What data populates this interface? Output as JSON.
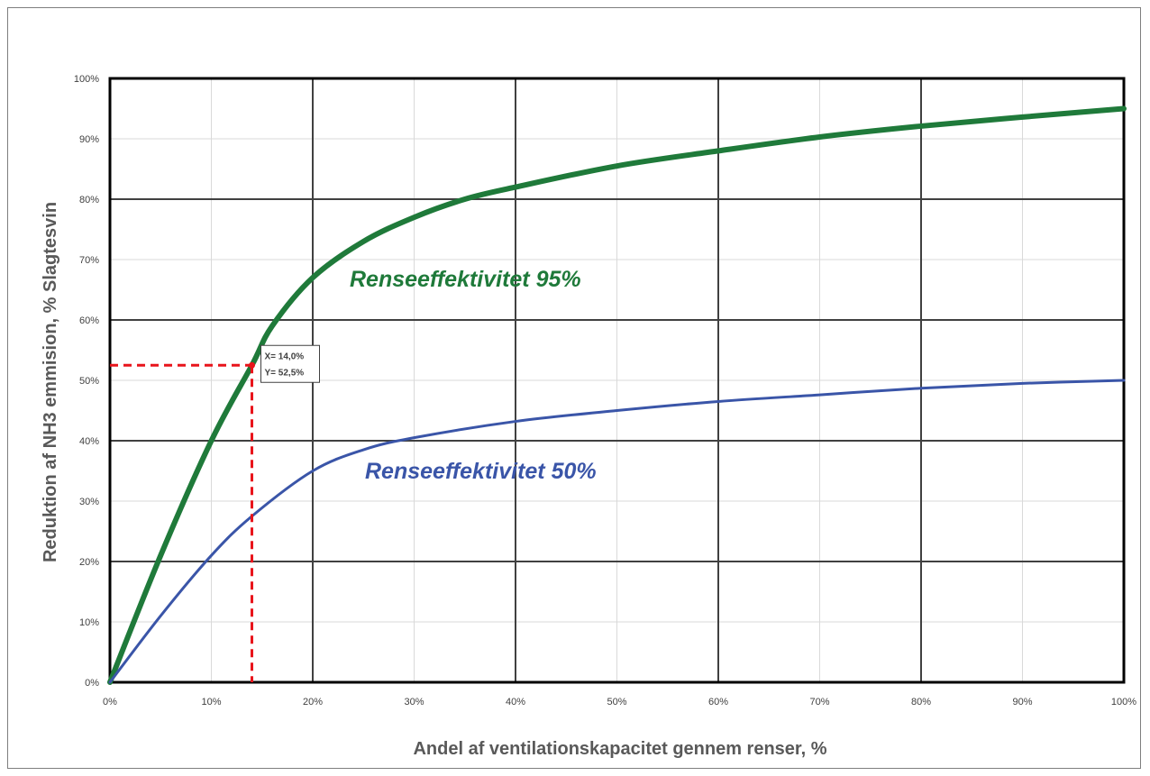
{
  "chart_data": {
    "type": "line",
    "title": "",
    "xlabel": "Andel af ventilationskapacitet gennem renser, %",
    "ylabel": "Reduktion af NH3 emmision, % Slagtesvin",
    "xlim": [
      0,
      100
    ],
    "ylim": [
      0,
      100
    ],
    "x_ticks": [
      "0%",
      "10%",
      "20%",
      "30%",
      "40%",
      "50%",
      "60%",
      "70%",
      "80%",
      "90%",
      "100%"
    ],
    "y_ticks": [
      "0%",
      "10%",
      "20%",
      "30%",
      "40%",
      "50%",
      "60%",
      "70%",
      "80%",
      "90%",
      "100%"
    ],
    "grid": true,
    "series": [
      {
        "name": "Renseeffektivitet 95%",
        "color": "#1f7a3a",
        "x": [
          0,
          5,
          10,
          14,
          16,
          20,
          25,
          30,
          35,
          40,
          50,
          60,
          70,
          80,
          90,
          100
        ],
        "y": [
          0,
          21,
          40,
          52.5,
          59,
          67,
          73,
          77,
          80,
          82,
          85.5,
          88,
          90.3,
          92.1,
          93.6,
          95
        ]
      },
      {
        "name": "Renseeffektivitet 50%",
        "color": "#3a55a8",
        "x": [
          0,
          5,
          10,
          14,
          20,
          25,
          30,
          40,
          50,
          60,
          70,
          80,
          90,
          100
        ],
        "y": [
          0,
          11,
          21,
          27.5,
          35,
          38.5,
          40.5,
          43.2,
          45,
          46.5,
          47.6,
          48.7,
          49.5,
          50
        ]
      }
    ],
    "annotations": [
      {
        "text": "Renseeffektivitet 95%",
        "color": "#1f7a3a"
      },
      {
        "text": "Renseeffektivitet 50%",
        "color": "#3a55a8"
      }
    ],
    "marker": {
      "x": 14.0,
      "y": 52.5,
      "label_x": "X= 14,0%",
      "label_y": "Y= 52,5%",
      "color": "#e8141b"
    }
  }
}
